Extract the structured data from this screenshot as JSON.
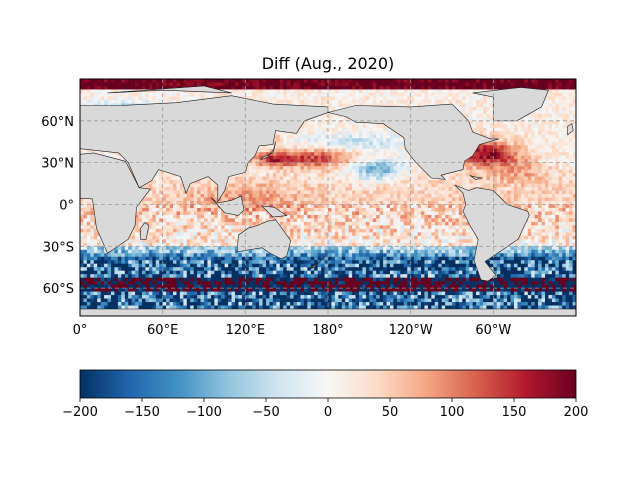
{
  "map": {
    "title": "Diff (Aug., 2020)",
    "projection": "PlateCarree, central longitude 180",
    "extent": {
      "lon_min": 0,
      "lon_max": 360,
      "lat_min": -80,
      "lat_max": 90
    },
    "lat_ticks": [
      {
        "lat": 60,
        "label": "60°N"
      },
      {
        "lat": 30,
        "label": "30°N"
      },
      {
        "lat": 0,
        "label": "0°"
      },
      {
        "lat": -30,
        "label": "30°S"
      },
      {
        "lat": -60,
        "label": "60°S"
      }
    ],
    "lon_ticks": [
      {
        "lon": 0,
        "label": "0°"
      },
      {
        "lon": 60,
        "label": "60°E"
      },
      {
        "lon": 120,
        "label": "120°E"
      },
      {
        "lon": 180,
        "label": "180°"
      },
      {
        "lon": 240,
        "label": "120°W"
      },
      {
        "lon": 300,
        "label": "60°W"
      }
    ],
    "colors": {
      "land": "#d9d9d9",
      "coast": "#1a1a1a",
      "grid": "#9a9a9a"
    }
  },
  "colorbar": {
    "min": -200,
    "max": 200,
    "cmap": "RdBu_r",
    "ticks": [
      {
        "value": -200,
        "label": "−200"
      },
      {
        "value": -150,
        "label": "−150"
      },
      {
        "value": -100,
        "label": "−100"
      },
      {
        "value": -50,
        "label": "−50"
      },
      {
        "value": 0,
        "label": "0"
      },
      {
        "value": 50,
        "label": "50"
      },
      {
        "value": 100,
        "label": "100"
      },
      {
        "value": 150,
        "label": "150"
      },
      {
        "value": 200,
        "label": "200"
      }
    ]
  },
  "chart_data": {
    "type": "heatmap",
    "title": "Diff (Aug., 2020)",
    "variable": "difference field (ocean only)",
    "value_range": [
      -200,
      200
    ],
    "regional_pattern": [
      {
        "region": "North Pacific (25–40°N)",
        "approx_value": 120
      },
      {
        "region": "Northwest Atlantic / Gulf Stream (25–45°N)",
        "approx_value": 170
      },
      {
        "region": "Tropical oceans (30°S–30°N)",
        "approx_value": 40
      },
      {
        "region": "Southern Ocean (40–70°S)",
        "approx_value": -180
      },
      {
        "region": "Arctic margin (80–90°N)",
        "approx_value": 200
      }
    ]
  }
}
